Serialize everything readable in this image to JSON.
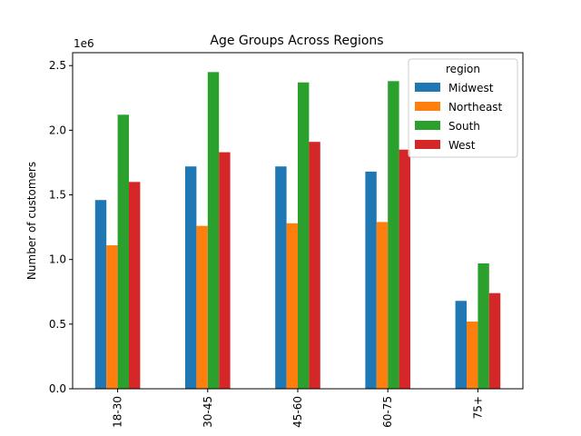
{
  "chart_data": {
    "type": "bar",
    "title": "Age Groups Across Regions",
    "xlabel": "",
    "ylabel": "Number of customers",
    "y_offset_label": "1e6",
    "y_scale": 1000000,
    "categories": [
      "18-30",
      "30-45",
      "45-60",
      "60-75",
      "75+"
    ],
    "ylim": [
      0,
      2.6
    ],
    "yticks": [
      "0.0",
      "0.5",
      "1.0",
      "1.5",
      "2.0",
      "2.5"
    ],
    "legend": {
      "title": "region",
      "placement": "top-right"
    },
    "grid": false,
    "series": [
      {
        "name": "Midwest",
        "color": "#1f77b4",
        "values": [
          1460000,
          1720000,
          1720000,
          1680000,
          680000
        ]
      },
      {
        "name": "Northeast",
        "color": "#ff7f0e",
        "values": [
          1110000,
          1260000,
          1280000,
          1290000,
          520000
        ]
      },
      {
        "name": "South",
        "color": "#2ca02c",
        "values": [
          2120000,
          2450000,
          2370000,
          2380000,
          970000
        ]
      },
      {
        "name": "West",
        "color": "#d62728",
        "values": [
          1600000,
          1830000,
          1910000,
          1850000,
          740000
        ]
      }
    ]
  }
}
